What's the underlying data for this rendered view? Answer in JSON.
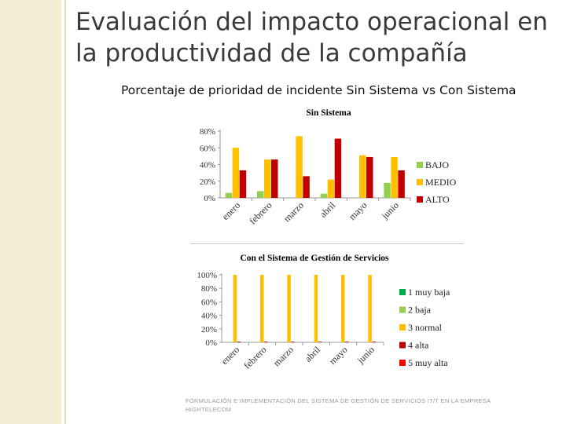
{
  "slide": {
    "title": "Evaluación del impacto operacional en la productividad de la compañía",
    "subtitle": "Porcentaje de prioridad de incidente Sin Sistema vs Con Sistema",
    "footer": "FORMULACIÓN E IMPLEMENTACIÓN DEL SISTEMA DE GESTIÓN DE SERVICIOS IT/T EN LA EMPRESA HIGHTELECOM"
  },
  "chart_data": [
    {
      "type": "bar",
      "title": "Sin Sistema",
      "categories": [
        "enero",
        "febrero",
        "marzo",
        "abril",
        "mayo",
        "junio"
      ],
      "ylim": [
        0,
        80
      ],
      "yticks": [
        "0%",
        "20%",
        "40%",
        "60%",
        "80%"
      ],
      "legend_position": "right",
      "series": [
        {
          "name": "BAJO",
          "color": "#92d050",
          "values": [
            6,
            8,
            0,
            5,
            0,
            18
          ]
        },
        {
          "name": "MEDIO",
          "color": "#ffc000",
          "values": [
            60,
            46,
            74,
            22,
            51,
            49
          ]
        },
        {
          "name": "ALTO",
          "color": "#c00000",
          "values": [
            33,
            46,
            26,
            71,
            49,
            33
          ]
        }
      ]
    },
    {
      "type": "bar",
      "title": "Con el Sistema de Gestión de Servicios",
      "categories": [
        "enero",
        "febrero",
        "marzo",
        "abril",
        "mayo",
        "junio"
      ],
      "ylim": [
        0,
        100
      ],
      "yticks": [
        "0%",
        "20%",
        "40%",
        "60%",
        "80%",
        "100%"
      ],
      "legend_position": "right",
      "series": [
        {
          "name": "1 muy baja",
          "color": "#00b050",
          "values": [
            0,
            0,
            0,
            0,
            0,
            0
          ]
        },
        {
          "name": "2 baja",
          "color": "#92d050",
          "values": [
            0,
            0,
            0,
            0,
            0,
            0
          ]
        },
        {
          "name": "3 normal",
          "color": "#ffc000",
          "values": [
            100,
            100,
            100,
            100,
            100,
            100
          ]
        },
        {
          "name": "4 alta",
          "color": "#c00000",
          "values": [
            1,
            1,
            1,
            1,
            1,
            1
          ]
        },
        {
          "name": "5 muy alta",
          "color": "#ff0000",
          "values": [
            0,
            0,
            0,
            0,
            0,
            0
          ]
        }
      ]
    }
  ]
}
